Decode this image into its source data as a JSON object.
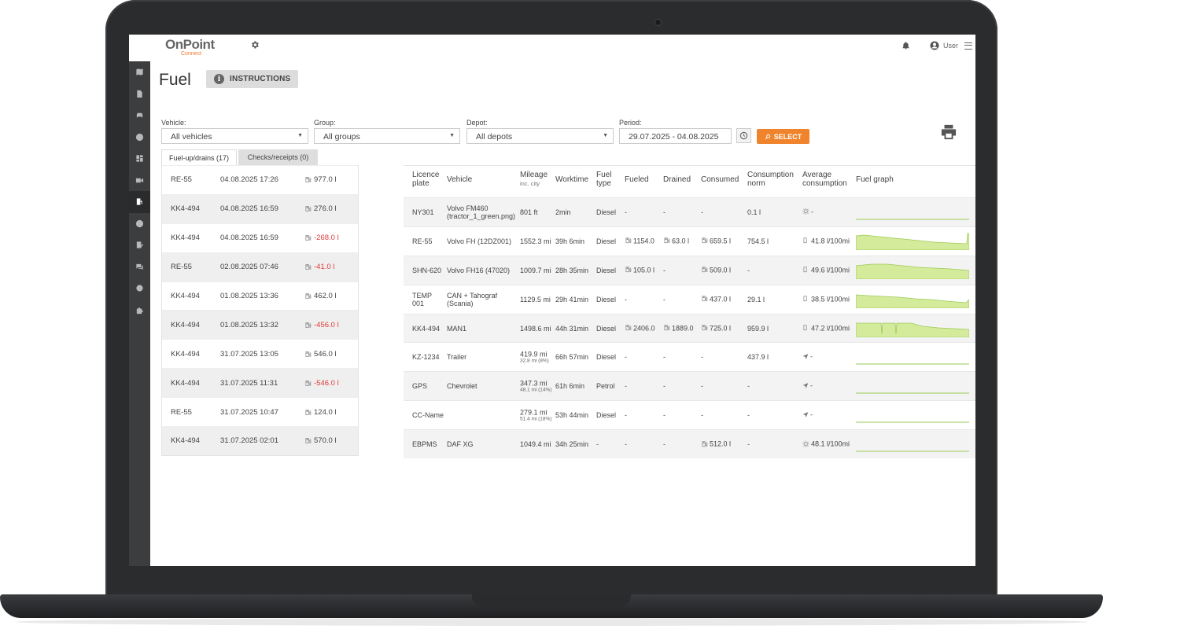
{
  "header": {
    "logo_main": "OnPoint",
    "logo_sub": "Connect",
    "user_label": "User"
  },
  "page": {
    "title": "Fuel",
    "instructions_label": "INSTRUCTIONS"
  },
  "filters": {
    "vehicle_label": "Vehicle:",
    "vehicle_value": "All vehicles",
    "group_label": "Group:",
    "group_value": "All groups",
    "depot_label": "Depot:",
    "depot_value": "All depots",
    "period_label": "Period:",
    "period_value": "29.07.2025 - 04.08.2025",
    "select_label": "SELECT"
  },
  "tabs": {
    "fuelups": "Fuel-up/drains (17)",
    "checks": "Checks/receipts (0)"
  },
  "fuel_events": [
    {
      "plate": "RE-55",
      "date": "04.08.2025 17:26",
      "amount": "977.0 l",
      "negative": false
    },
    {
      "plate": "KK4-494",
      "date": "04.08.2025 16:59",
      "amount": "276.0 l",
      "negative": false
    },
    {
      "plate": "KK4-494",
      "date": "04.08.2025 16:59",
      "amount": "-268.0 l",
      "negative": true
    },
    {
      "plate": "RE-55",
      "date": "02.08.2025 07:46",
      "amount": "-41.0 l",
      "negative": true
    },
    {
      "plate": "KK4-494",
      "date": "01.08.2025 13:36",
      "amount": "462.0 l",
      "negative": false
    },
    {
      "plate": "KK4-494",
      "date": "01.08.2025 13:32",
      "amount": "-456.0 l",
      "negative": true
    },
    {
      "plate": "KK4-494",
      "date": "31.07.2025 13:05",
      "amount": "546.0 l",
      "negative": false
    },
    {
      "plate": "KK4-494",
      "date": "31.07.2025 11:31",
      "amount": "-546.0 l",
      "negative": true
    },
    {
      "plate": "RE-55",
      "date": "31.07.2025 10:47",
      "amount": "124.0 l",
      "negative": false
    },
    {
      "plate": "KK4-494",
      "date": "31.07.2025 02:01",
      "amount": "570.0 l",
      "negative": false
    }
  ],
  "table": {
    "headers": {
      "plate1": "Licence",
      "plate2": "plate",
      "vehicle": "Vehicle",
      "mileage": "Mileage",
      "mileage_sub": "inc. city",
      "worktime": "Worktime",
      "fuel1": "Fuel",
      "fuel2": "type",
      "fueled": "Fueled",
      "drained": "Drained",
      "consumed": "Consumed",
      "norm1": "Consumption",
      "norm2": "norm",
      "avg1": "Average",
      "avg2": "consumption",
      "graph": "Fuel graph"
    },
    "rows": [
      {
        "plate": "NY301",
        "vehicle": "Volvo FM460 (tractor_1_green.png)",
        "mileage": "801 ft",
        "mileage_city": "",
        "worktime": "2min",
        "fuel": "Diesel",
        "fueled": "-",
        "drained": "-",
        "consumed": "-",
        "norm": "0.1 l",
        "avg": "-",
        "avg_icon": "sun",
        "graph": "flat"
      },
      {
        "plate": "RE-55",
        "vehicle": "Volvo FH (12DZ001)",
        "mileage": "1552.3 mi",
        "mileage_city": "",
        "worktime": "39h 6min",
        "fuel": "Diesel",
        "fueled": "1154.0",
        "drained": "63.0 l",
        "consumed": "659.5 l",
        "norm": "754.5 l",
        "avg": "41.8 l/100mi",
        "avg_icon": "pump",
        "graph": "re55"
      },
      {
        "plate": "SHN-620",
        "vehicle": "Volvo FH16 (47020)",
        "mileage": "1009.7 mi",
        "mileage_city": "",
        "worktime": "28h 35min",
        "fuel": "Diesel",
        "fueled": "105.0 l",
        "drained": "-",
        "consumed": "509.0 l",
        "norm": "-",
        "avg": "49.6 l/100mi",
        "avg_icon": "pump",
        "graph": "shn"
      },
      {
        "plate": "TEMP 001",
        "vehicle": "CAN + Tahograf (Scania)",
        "mileage": "1129.5 mi",
        "mileage_city": "",
        "worktime": "29h 41min",
        "fuel": "Diesel",
        "fueled": "-",
        "drained": "-",
        "consumed": "437.0 l",
        "norm": "29.1 l",
        "avg": "38.5 l/100mi",
        "avg_icon": "pump",
        "graph": "temp"
      },
      {
        "plate": "KK4-494",
        "vehicle": "MAN1",
        "mileage": "1498.6 mi",
        "mileage_city": "",
        "worktime": "44h 31min",
        "fuel": "Diesel",
        "fueled": "2406.0",
        "drained": "1889.0",
        "consumed": "725.0 l",
        "norm": "959.9 l",
        "avg": "47.2 l/100mi",
        "avg_icon": "pump",
        "graph": "kk4"
      },
      {
        "plate": "KZ-1234",
        "vehicle": "Trailer",
        "mileage": "419.9 mi",
        "mileage_city": "32.8 mi (8%)",
        "worktime": "66h 57min",
        "fuel": "Diesel",
        "fueled": "-",
        "drained": "-",
        "consumed": "-",
        "norm": "437.9 l",
        "avg": "-",
        "avg_icon": "arrow",
        "graph": "flat"
      },
      {
        "plate": "GPS",
        "vehicle": "Chevrolet",
        "mileage": "347.3 mi",
        "mileage_city": "48.1 mi (14%)",
        "worktime": "61h 6min",
        "fuel": "Petrol",
        "fueled": "-",
        "drained": "-",
        "consumed": "-",
        "norm": "-",
        "avg": "-",
        "avg_icon": "arrow",
        "graph": "flat"
      },
      {
        "plate": "CC-Name",
        "vehicle": "",
        "mileage": "279.1 mi",
        "mileage_city": "51.4 mi (18%)",
        "worktime": "53h 44min",
        "fuel": "Diesel",
        "fueled": "-",
        "drained": "-",
        "consumed": "-",
        "norm": "-",
        "avg": "-",
        "avg_icon": "arrow",
        "graph": "flat"
      },
      {
        "plate": "EBPMS",
        "vehicle": "DAF XG",
        "mileage": "1049.4 mi",
        "mileage_city": "",
        "worktime": "34h 25min",
        "fuel": "-",
        "fueled": "-",
        "drained": "-",
        "consumed": "512.0 l",
        "norm": "-",
        "avg": "48.1 l/100mi",
        "avg_icon": "sun",
        "graph": "flat"
      }
    ]
  },
  "colors": {
    "accent": "#f0842c",
    "negative": "#e03b3b",
    "graph_fill": "#d4eb9c",
    "graph_line": "#9ccb55",
    "sidebar": "#3c3d3f"
  }
}
